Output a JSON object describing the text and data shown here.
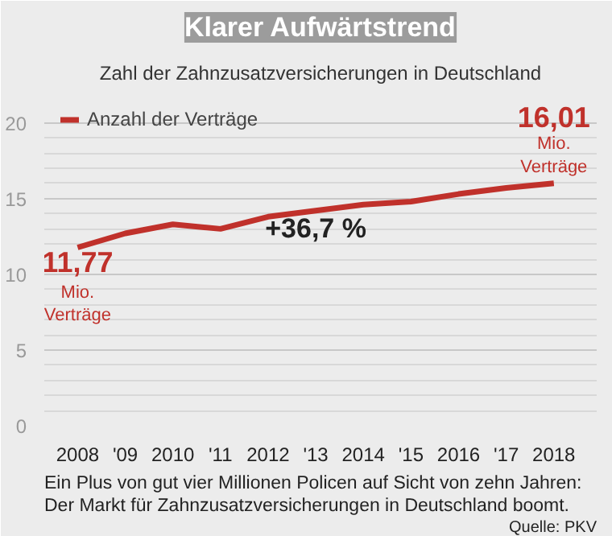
{
  "chart_data": {
    "type": "line",
    "title": "Klarer Aufwärtstrend",
    "subtitle": "Zahl der Zahnzusatzversicherungen in Deutschland",
    "x": [
      2008,
      2009,
      2010,
      2011,
      2012,
      2013,
      2014,
      2015,
      2016,
      2017,
      2018
    ],
    "series": [
      {
        "name": "Anzahl der Verträge",
        "color": "#c0312b",
        "values": [
          11.77,
          12.7,
          13.3,
          13.0,
          13.8,
          14.2,
          14.6,
          14.8,
          15.3,
          15.7,
          16.01
        ],
        "value_labels": [
          "11,77",
          null,
          null,
          null,
          null,
          null,
          null,
          null,
          null,
          null,
          "16,01"
        ]
      }
    ],
    "xlim": [
      2007.3,
      2018.9
    ],
    "ylim": [
      0,
      22
    ],
    "xticks": [
      2008,
      {
        "value": 2009,
        "label": "'09"
      },
      2010,
      {
        "value": 2011,
        "label": "'11"
      },
      2012,
      {
        "value": 2013,
        "label": "'13"
      },
      2014,
      {
        "value": 2015,
        "label": "'15"
      },
      2016,
      {
        "value": 2017,
        "label": "'17"
      },
      2018
    ],
    "yticks": [
      0,
      5,
      10,
      15,
      20
    ],
    "grid": "y",
    "legend": "top left",
    "marker": "none",
    "line_style": "solid",
    "annotations": [
      {
        "text": "Mio. Verträge",
        "x": 2008,
        "y": 11.77
      },
      {
        "text": "Mio. Verträge",
        "x": 2018,
        "y": 16.01
      },
      "+36,7 %",
      "Ein Plus von gut vier Millionen Policen auf Sicht von zehn Jahren: Der Markt für Zahnzusatzversicherungen in Deutschland boomt.",
      "Quelle: PKV"
    ]
  }
}
